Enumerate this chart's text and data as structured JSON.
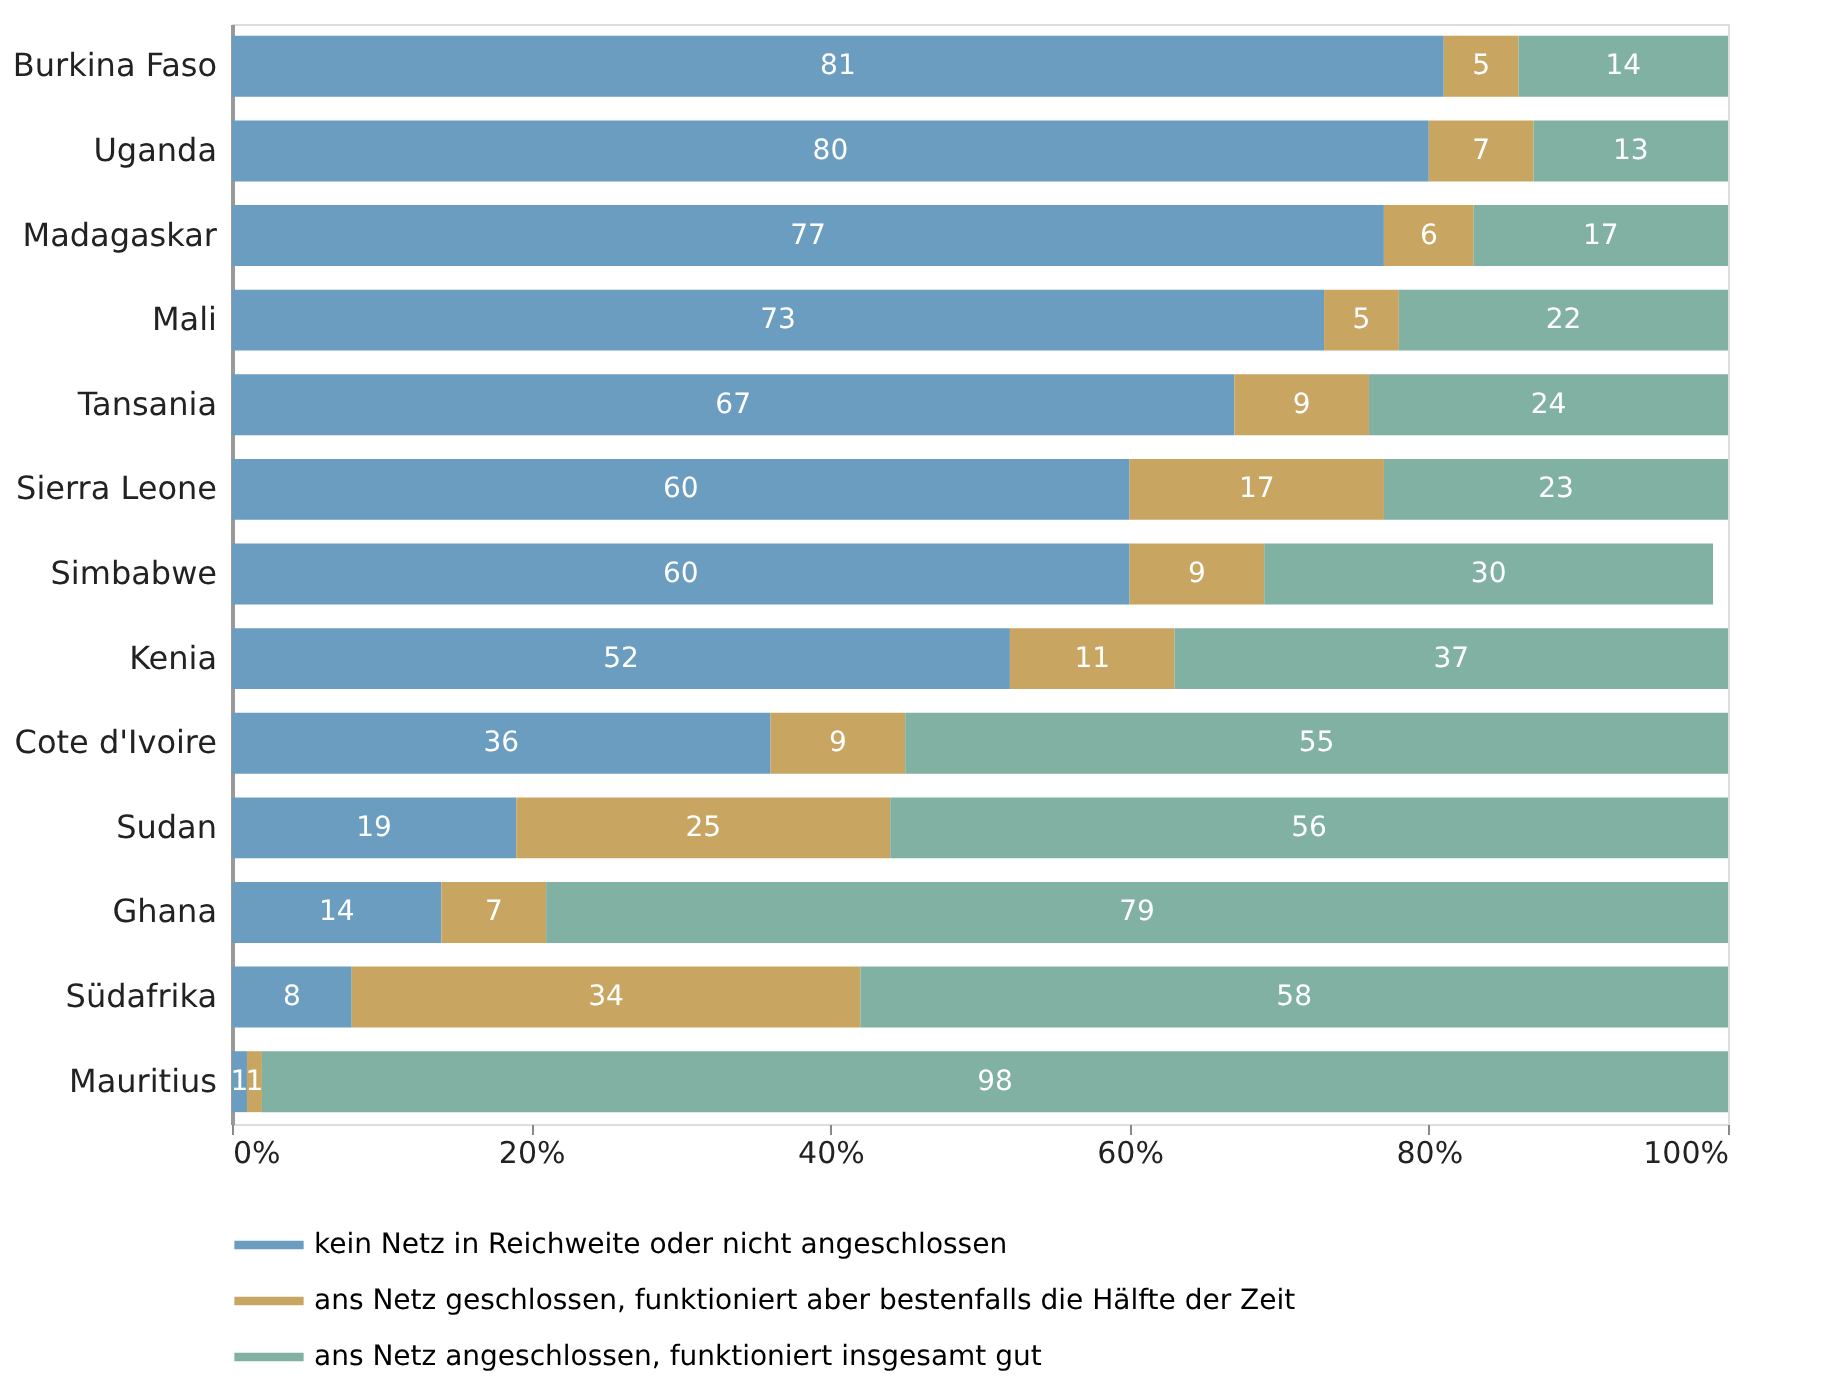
{
  "chart_data": {
    "type": "bar",
    "orientation": "horizontal",
    "stacked": true,
    "data_labels": true,
    "legend": "bottom",
    "grid": false,
    "categories": [
      "Burkina Faso",
      "Uganda",
      "Madagaskar",
      "Mali",
      "Tansania",
      "Sierra Leone",
      "Simbabwe",
      "Kenia",
      "Cote d'Ivoire",
      "Sudan",
      "Ghana",
      "Südafrika",
      "Mauritius"
    ],
    "xlim": [
      0,
      100
    ],
    "xticks": [
      {
        "value": 0,
        "label": "0%"
      },
      {
        "value": 20,
        "label": "20%"
      },
      {
        "value": 40,
        "label": "40%"
      },
      {
        "value": 60,
        "label": "60%"
      },
      {
        "value": 80,
        "label": "80%"
      },
      {
        "value": 100,
        "label": "100%"
      }
    ],
    "series": [
      {
        "name": "kein Netz in Reichweite oder nicht angeschlossen",
        "color": "#6b9dc0",
        "values": [
          81,
          80,
          77,
          73,
          67,
          60,
          60,
          52,
          36,
          19,
          14,
          8,
          1
        ]
      },
      {
        "name": "ans Netz geschlossen, funktioniert aber bestenfalls die Hälfte der Zeit",
        "color": "#c9a562",
        "values": [
          5,
          7,
          6,
          5,
          9,
          17,
          9,
          11,
          9,
          25,
          7,
          34,
          1
        ]
      },
      {
        "name": "ans Netz angeschlossen, funktioniert insgesamt gut",
        "color": "#80b1a3",
        "values": [
          14,
          13,
          17,
          22,
          24,
          23,
          30,
          37,
          55,
          56,
          79,
          58,
          98
        ]
      }
    ]
  }
}
